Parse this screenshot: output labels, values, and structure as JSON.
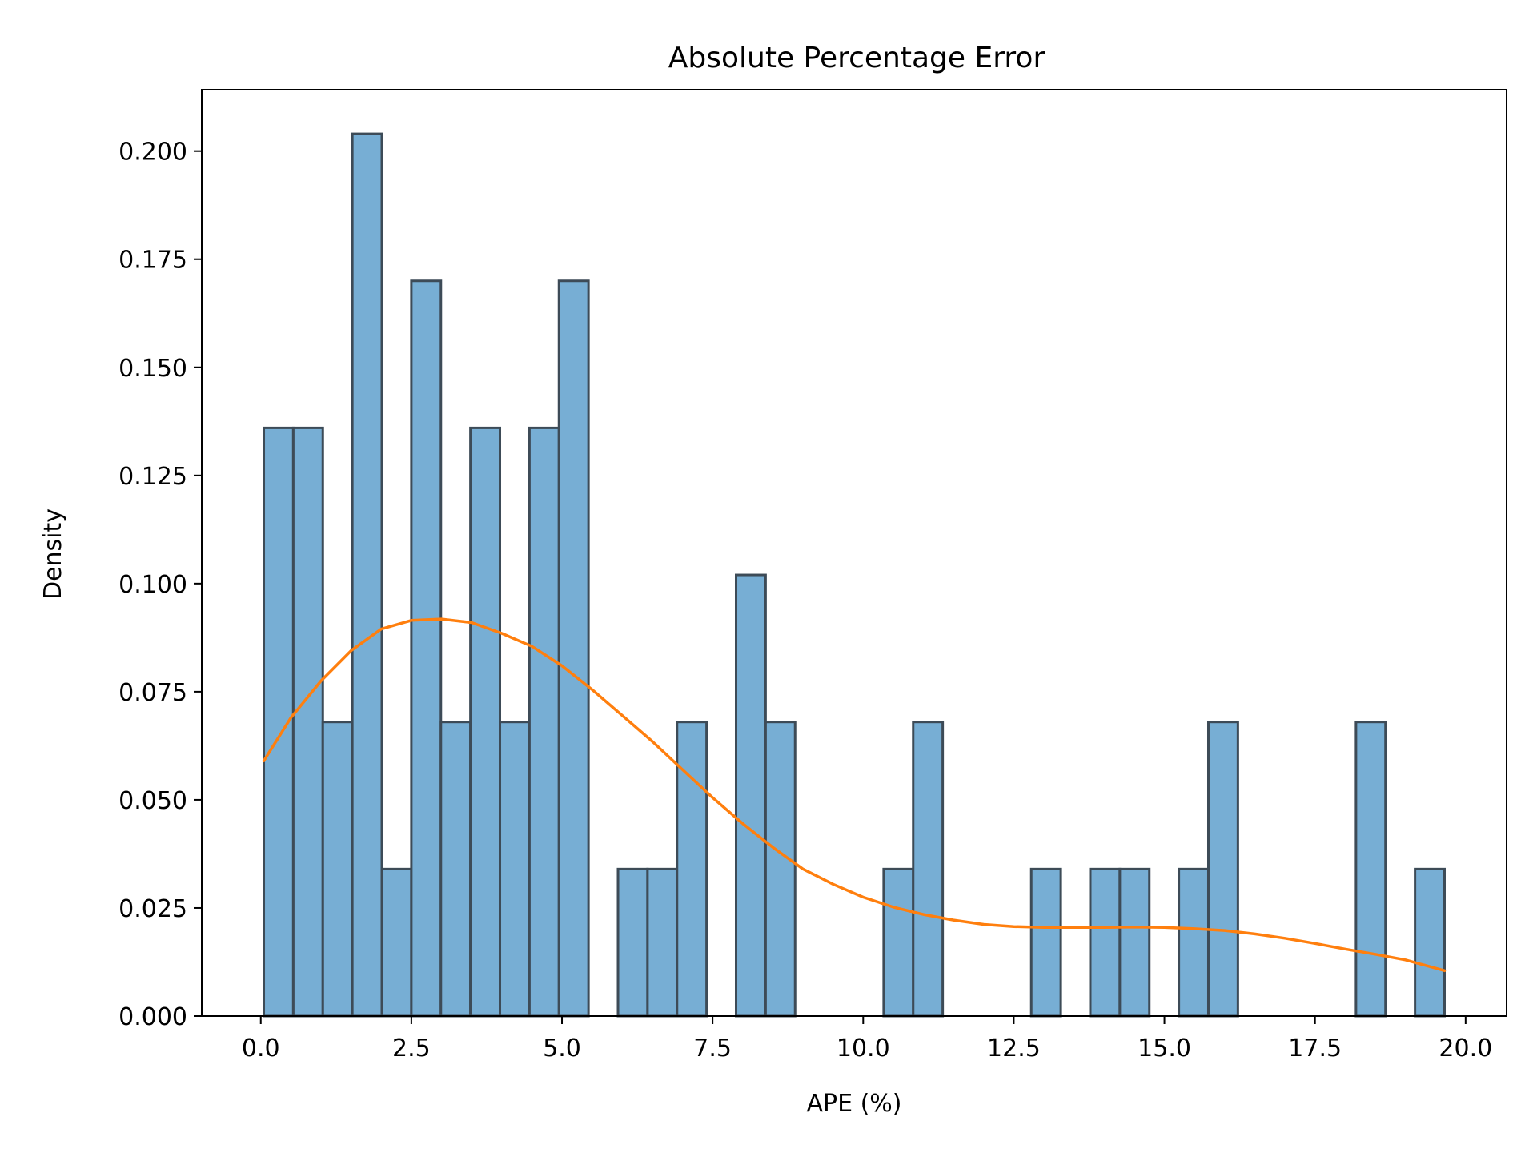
{
  "chart_data": {
    "type": "bar",
    "title": "Absolute Percentage Error",
    "xlabel": "APE (%)",
    "ylabel": "Density",
    "xlim": [
      -0.98,
      20.68
    ],
    "ylim": [
      0,
      0.2142
    ],
    "xticks": [
      "0.0",
      "2.5",
      "5.0",
      "7.5",
      "10.0",
      "12.5",
      "15.0",
      "17.5",
      "20.0"
    ],
    "yticks": [
      "0.000",
      "0.025",
      "0.050",
      "0.075",
      "0.100",
      "0.125",
      "0.150",
      "0.175",
      "0.200"
    ],
    "grid": false,
    "bin_width": 0.49,
    "bins": [
      {
        "x0": 0.05,
        "x1": 0.54,
        "density": 0.136
      },
      {
        "x0": 0.54,
        "x1": 1.03,
        "density": 0.136
      },
      {
        "x0": 1.03,
        "x1": 1.52,
        "density": 0.068
      },
      {
        "x0": 1.52,
        "x1": 2.01,
        "density": 0.204
      },
      {
        "x0": 2.01,
        "x1": 2.5,
        "density": 0.034
      },
      {
        "x0": 2.5,
        "x1": 2.99,
        "density": 0.17
      },
      {
        "x0": 2.99,
        "x1": 3.48,
        "density": 0.068
      },
      {
        "x0": 3.48,
        "x1": 3.97,
        "density": 0.136
      },
      {
        "x0": 3.97,
        "x1": 4.46,
        "density": 0.068
      },
      {
        "x0": 4.46,
        "x1": 4.95,
        "density": 0.136
      },
      {
        "x0": 4.95,
        "x1": 5.44,
        "density": 0.17
      },
      {
        "x0": 5.93,
        "x1": 6.42,
        "density": 0.034
      },
      {
        "x0": 6.42,
        "x1": 6.91,
        "density": 0.034
      },
      {
        "x0": 6.91,
        "x1": 7.4,
        "density": 0.068
      },
      {
        "x0": 7.89,
        "x1": 8.38,
        "density": 0.102
      },
      {
        "x0": 8.38,
        "x1": 8.87,
        "density": 0.068
      },
      {
        "x0": 10.34,
        "x1": 10.83,
        "density": 0.034
      },
      {
        "x0": 10.83,
        "x1": 11.32,
        "density": 0.068
      },
      {
        "x0": 12.79,
        "x1": 13.28,
        "density": 0.034
      },
      {
        "x0": 13.77,
        "x1": 14.26,
        "density": 0.034
      },
      {
        "x0": 14.26,
        "x1": 14.75,
        "density": 0.034
      },
      {
        "x0": 15.24,
        "x1": 15.73,
        "density": 0.034
      },
      {
        "x0": 15.73,
        "x1": 16.22,
        "density": 0.068
      },
      {
        "x0": 18.18,
        "x1": 18.67,
        "density": 0.068
      },
      {
        "x0": 19.16,
        "x1": 19.65,
        "density": 0.034
      }
    ],
    "kde": {
      "x": [
        0.05,
        0.5,
        1.0,
        1.5,
        2.0,
        2.5,
        3.0,
        3.5,
        4.0,
        4.5,
        5.0,
        5.5,
        6.0,
        6.5,
        7.0,
        7.5,
        8.0,
        8.5,
        9.0,
        9.5,
        10.0,
        10.5,
        11.0,
        11.5,
        12.0,
        12.5,
        13.0,
        13.5,
        14.0,
        14.5,
        15.0,
        15.5,
        16.0,
        16.5,
        17.0,
        17.5,
        18.0,
        18.5,
        19.0,
        19.65
      ],
      "y": [
        0.059,
        0.069,
        0.0775,
        0.0845,
        0.0895,
        0.0915,
        0.0918,
        0.091,
        0.0885,
        0.0855,
        0.081,
        0.0755,
        0.0695,
        0.0635,
        0.057,
        0.0505,
        0.0445,
        0.039,
        0.034,
        0.0305,
        0.0275,
        0.0252,
        0.0235,
        0.0222,
        0.0212,
        0.0207,
        0.0205,
        0.0205,
        0.0205,
        0.0206,
        0.0205,
        0.0202,
        0.0198,
        0.019,
        0.018,
        0.0168,
        0.0155,
        0.0143,
        0.013,
        0.0105
      ]
    },
    "colors": {
      "bar_fill": "#77aed4",
      "bar_edge": "#3d4b57",
      "kde_line": "#ff7f0e",
      "axes": "#000000"
    }
  }
}
